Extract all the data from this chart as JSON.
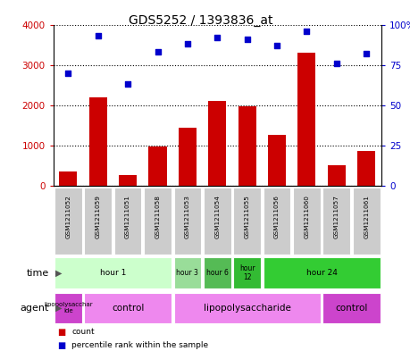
{
  "title": "GDS5252 / 1393836_at",
  "samples": [
    "GSM1211052",
    "GSM1211059",
    "GSM1211051",
    "GSM1211058",
    "GSM1211053",
    "GSM1211054",
    "GSM1211055",
    "GSM1211056",
    "GSM1211060",
    "GSM1211057",
    "GSM1211061"
  ],
  "counts": [
    350,
    2200,
    280,
    980,
    1450,
    2100,
    1980,
    1270,
    3300,
    520,
    870
  ],
  "percentiles": [
    70,
    93,
    63,
    83,
    88,
    92,
    91,
    87,
    96,
    76,
    82
  ],
  "ylim_left": [
    0,
    4000
  ],
  "ylim_right": [
    0,
    100
  ],
  "yticks_left": [
    0,
    1000,
    2000,
    3000,
    4000
  ],
  "yticks_right": [
    0,
    25,
    50,
    75,
    100
  ],
  "bar_color": "#cc0000",
  "scatter_color": "#0000cc",
  "time_row": [
    {
      "label": "hour 1",
      "start": 0,
      "end": 4,
      "color": "#ccffcc"
    },
    {
      "label": "hour 3",
      "start": 4,
      "end": 5,
      "color": "#99dd99"
    },
    {
      "label": "hour 6",
      "start": 5,
      "end": 6,
      "color": "#55bb55"
    },
    {
      "label": "hour\n12",
      "start": 6,
      "end": 7,
      "color": "#33bb33"
    },
    {
      "label": "hour 24",
      "start": 7,
      "end": 11,
      "color": "#33cc33"
    }
  ],
  "agent_row": [
    {
      "label": "lipopolysacchar\nide",
      "start": 0,
      "end": 1,
      "color": "#cc44cc"
    },
    {
      "label": "control",
      "start": 1,
      "end": 4,
      "color": "#ee88ee"
    },
    {
      "label": "lipopolysaccharide",
      "start": 4,
      "end": 9,
      "color": "#ee88ee"
    },
    {
      "label": "control",
      "start": 9,
      "end": 11,
      "color": "#cc44cc"
    }
  ],
  "header_bg": "#cccccc",
  "legend_items": [
    {
      "color": "#cc0000",
      "label": "count"
    },
    {
      "color": "#0000cc",
      "label": "percentile rank within the sample"
    }
  ]
}
